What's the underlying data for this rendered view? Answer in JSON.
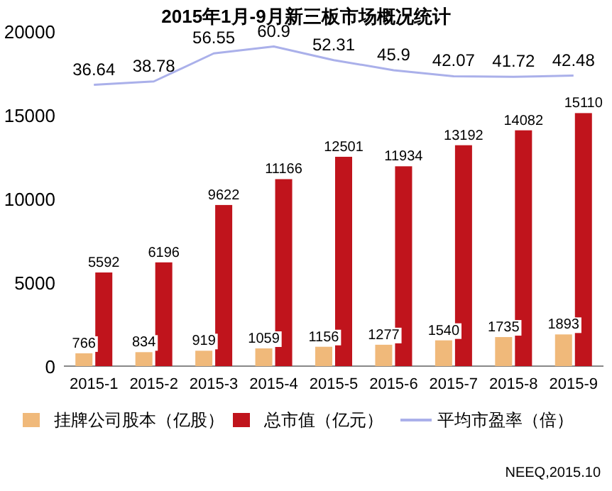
{
  "chart_data": {
    "type": "bar",
    "title": "2015年1月-9月新三板市场概况统计",
    "categories": [
      "2015-1",
      "2015-2",
      "2015-3",
      "2015-4",
      "2015-5",
      "2015-6",
      "2015-7",
      "2015-8",
      "2015-9"
    ],
    "series": [
      {
        "name": "挂牌公司股本（亿股）",
        "color": "#f0b97a",
        "values": [
          766,
          834,
          919,
          1059,
          1156,
          1277,
          1540,
          1735,
          1893
        ]
      },
      {
        "name": "总市值（亿元）",
        "color": "#c0141c",
        "values": [
          5592,
          6196,
          9622,
          11166,
          12501,
          11934,
          13192,
          14082,
          15110
        ]
      },
      {
        "name": "平均市盈率（倍）",
        "color": "#aab0ea",
        "type": "line",
        "axis": "y2",
        "marker": "none",
        "values": [
          36.64,
          38.78,
          56.55,
          60.9,
          52.31,
          45.9,
          42.07,
          41.72,
          42.48
        ]
      }
    ],
    "ylim": [
      0,
      20000
    ],
    "yticks": [
      0,
      5000,
      10000,
      15000,
      20000
    ],
    "data_labels": true,
    "legend": "bottom",
    "grid": false,
    "annotations": [
      "NEEQ,2015.10"
    ]
  }
}
